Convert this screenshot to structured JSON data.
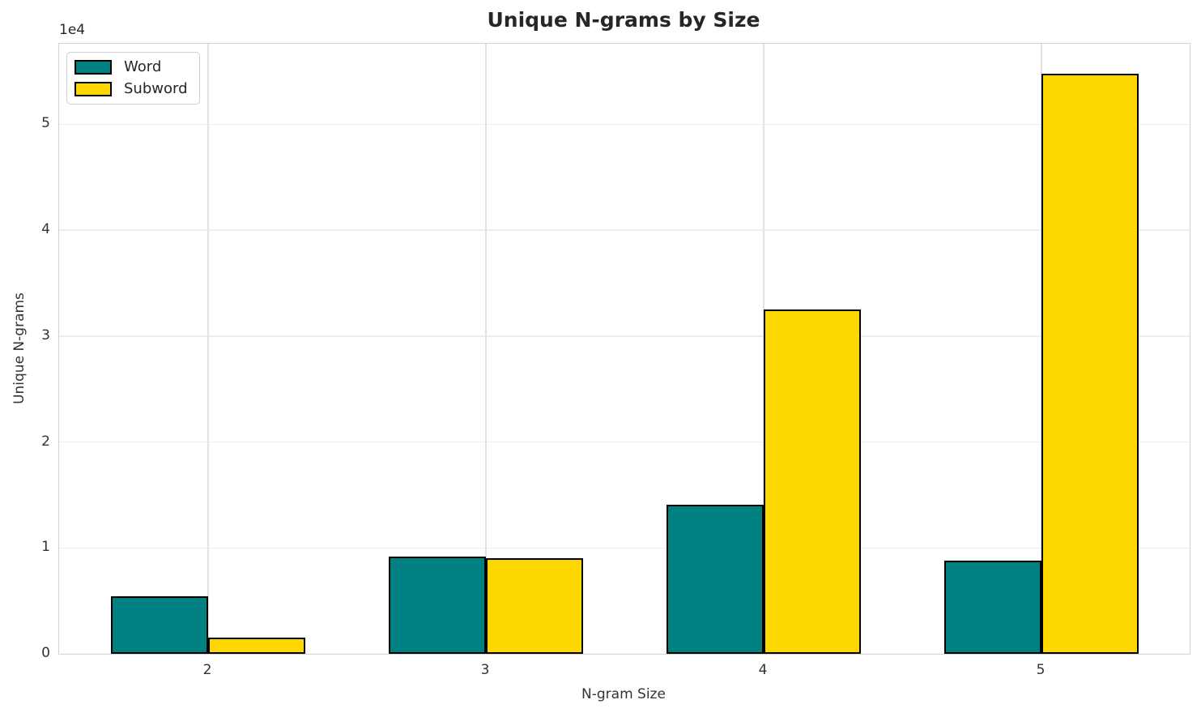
{
  "chart_data": {
    "type": "bar",
    "title": "Unique N-grams by Size",
    "xlabel": "N-gram Size",
    "ylabel": "Unique N-grams",
    "offset_text": "1e4",
    "categories": [
      "2",
      "3",
      "4",
      "5"
    ],
    "series": [
      {
        "name": "Word",
        "color": "#008080",
        "values": [
          5400,
          9200,
          14100,
          8800
        ]
      },
      {
        "name": "Subword",
        "color": "#FFD700",
        "values": [
          1500,
          9000,
          32500,
          54800
        ]
      }
    ],
    "bar_edge_color": "#000000",
    "ylim": [
      0,
      57600
    ],
    "yticks": [
      0,
      10000,
      20000,
      30000,
      40000,
      50000
    ],
    "ytick_labels": [
      "0",
      "1",
      "2",
      "3",
      "4",
      "5"
    ],
    "grid": true,
    "legend_position": "upper-left"
  }
}
